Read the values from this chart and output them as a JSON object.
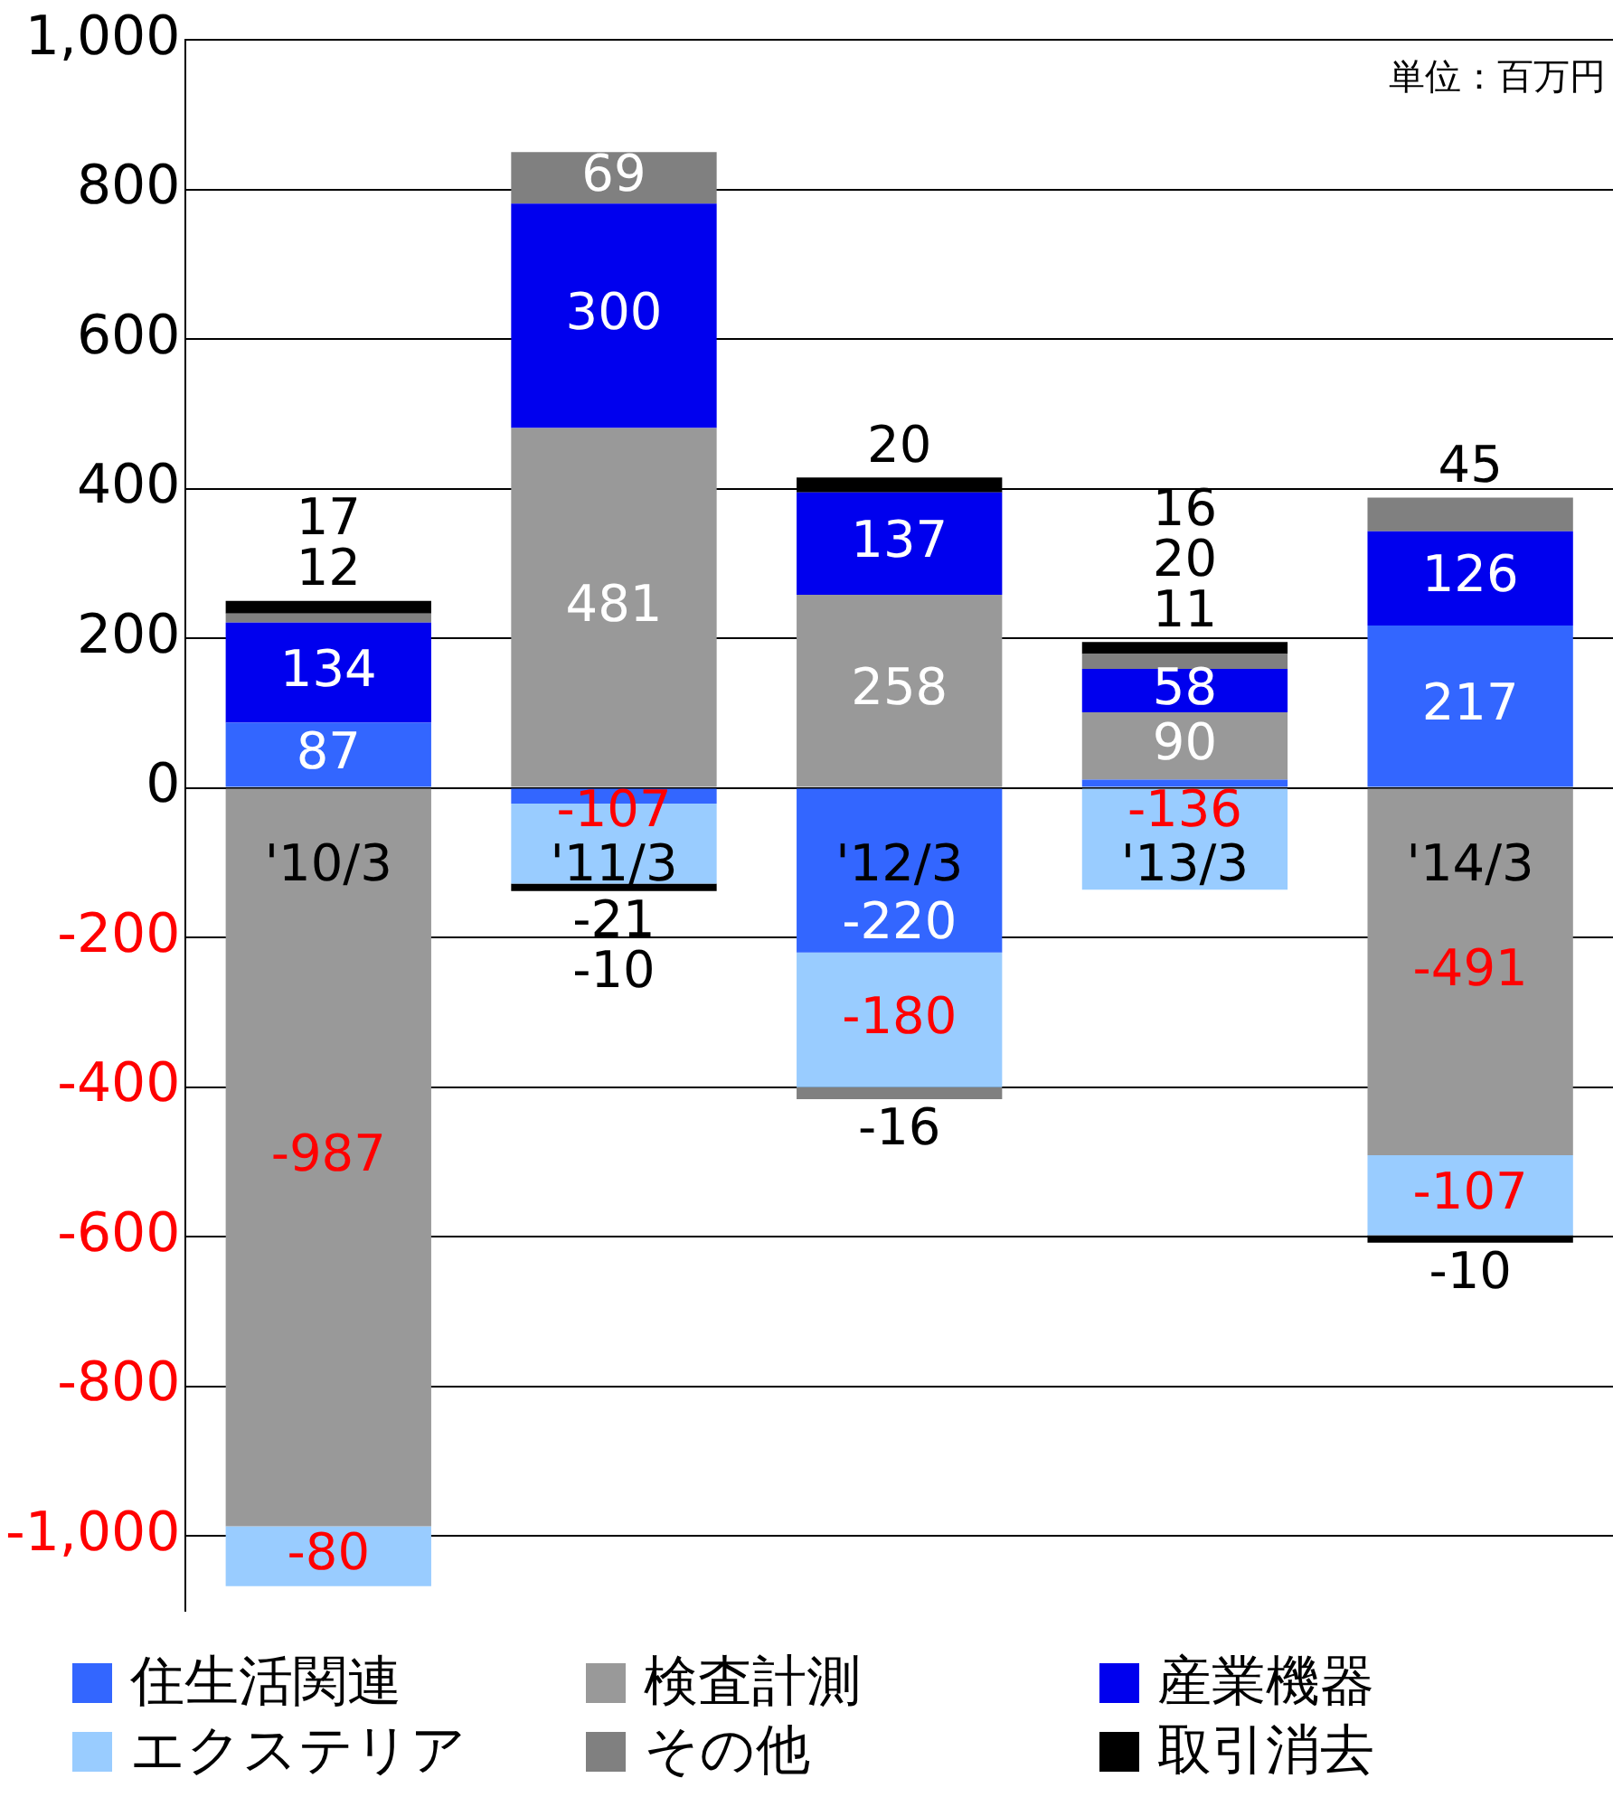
{
  "chart_data": {
    "type": "bar",
    "stacked": true,
    "categories": [
      "'10/3",
      "'11/3",
      "'12/3",
      "'13/3",
      "'14/3"
    ],
    "series": [
      {
        "name": "住生活関連",
        "color": "#3366ff",
        "values": [
          87,
          -21,
          -220,
          11,
          217
        ]
      },
      {
        "name": "検査計測",
        "color": "#999999",
        "values": [
          -987,
          481,
          258,
          90,
          -491
        ]
      },
      {
        "name": "産業機器",
        "color": "#0000ee",
        "values": [
          134,
          300,
          137,
          58,
          126
        ]
      },
      {
        "name": "エクステリア",
        "color": "#99ccff",
        "values": [
          -80,
          -107,
          -180,
          -136,
          -107
        ]
      },
      {
        "name": "その他",
        "color": "#808080",
        "values": [
          12,
          69,
          -16,
          20,
          45
        ]
      },
      {
        "name": "取引消去",
        "color": "#000000",
        "values": [
          17,
          -10,
          20,
          16,
          -10
        ]
      }
    ],
    "ylim": [
      -1100,
      1000
    ],
    "yticks": [
      {
        "value": -1000,
        "label": "-1,000"
      },
      -800,
      -600,
      -400,
      -200,
      0,
      200,
      400,
      600,
      800,
      {
        "value": 1000,
        "label": "1,000"
      }
    ],
    "grid": "y",
    "legend": "bottom",
    "data_labels": true,
    "annotations": [
      "単位：百万円"
    ]
  }
}
